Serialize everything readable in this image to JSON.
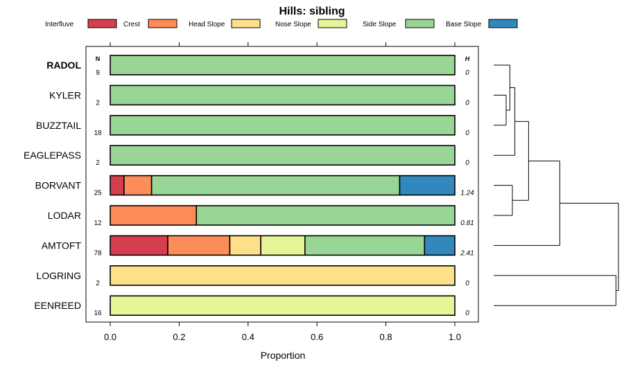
{
  "chart_data": {
    "type": "bar",
    "orientation": "horizontal",
    "stacked": true,
    "title": "Hills: sibling",
    "xlabel": "Proportion",
    "ylabel": "",
    "xlim": [
      0,
      1
    ],
    "xticks": [
      0.0,
      0.2,
      0.4,
      0.6,
      0.8,
      1.0
    ],
    "xtick_labels": [
      "0.0",
      "0.2",
      "0.4",
      "0.6",
      "0.8",
      "1.0"
    ],
    "n_header": "N",
    "h_header": "H",
    "legend_position": "top",
    "legend": [
      {
        "name": "Interfluve",
        "color": "#D53E4F"
      },
      {
        "name": "Crest",
        "color": "#FC8D59"
      },
      {
        "name": "Head Slope",
        "color": "#FEE08B"
      },
      {
        "name": "Nose Slope",
        "color": "#E6F598"
      },
      {
        "name": "Side Slope",
        "color": "#99D594"
      },
      {
        "name": "Base Slope",
        "color": "#3288BD"
      }
    ],
    "categories": [
      "RADOL",
      "KYLER",
      "BUZZTAIL",
      "EAGLEPASS",
      "BORVANT",
      "LODAR",
      "AMTOFT",
      "LOGRING",
      "EENREED"
    ],
    "highlight": "RADOL",
    "n": [
      "9",
      "2",
      "18",
      "2",
      "25",
      "12",
      "78",
      "2",
      "16"
    ],
    "h": [
      "0",
      "0",
      "0",
      "0",
      "1.24",
      "0.81",
      "2.41",
      "0",
      "0"
    ],
    "series": [
      {
        "name": "Interfluve",
        "values": [
          0,
          0,
          0,
          0,
          0.04,
          0,
          0.167,
          0,
          0
        ]
      },
      {
        "name": "Crest",
        "values": [
          0,
          0,
          0,
          0,
          0.08,
          0.25,
          0.18,
          0,
          0
        ]
      },
      {
        "name": "Head Slope",
        "values": [
          0,
          0,
          0,
          0,
          0,
          0,
          0.09,
          1,
          0
        ]
      },
      {
        "name": "Nose Slope",
        "values": [
          0,
          0,
          0,
          0,
          0,
          0,
          0.128,
          0,
          1
        ]
      },
      {
        "name": "Side Slope",
        "values": [
          1,
          1,
          1,
          1,
          0.72,
          0.75,
          0.347,
          0,
          0
        ]
      },
      {
        "name": "Base Slope",
        "values": [
          0,
          0,
          0,
          0,
          0.16,
          0,
          0.088,
          0,
          0
        ]
      }
    ],
    "dendrogram": {
      "description": "hierarchical clustering of rows",
      "merges": [
        {
          "left": 1,
          "right": 2,
          "height": 0.1
        },
        {
          "left": "m0",
          "right": 0,
          "height": 0.13
        },
        {
          "left": "m1",
          "right": 3,
          "height": 0.17
        },
        {
          "left": 4,
          "right": 5,
          "height": 0.15
        },
        {
          "left": "m2",
          "right": "m3",
          "height": 0.28
        },
        {
          "left": "m4",
          "right": 6,
          "height": 0.53
        },
        {
          "left": 7,
          "right": 8,
          "height": 0.98
        },
        {
          "left": "m5",
          "right": "m6",
          "height": 1.0
        }
      ]
    }
  }
}
